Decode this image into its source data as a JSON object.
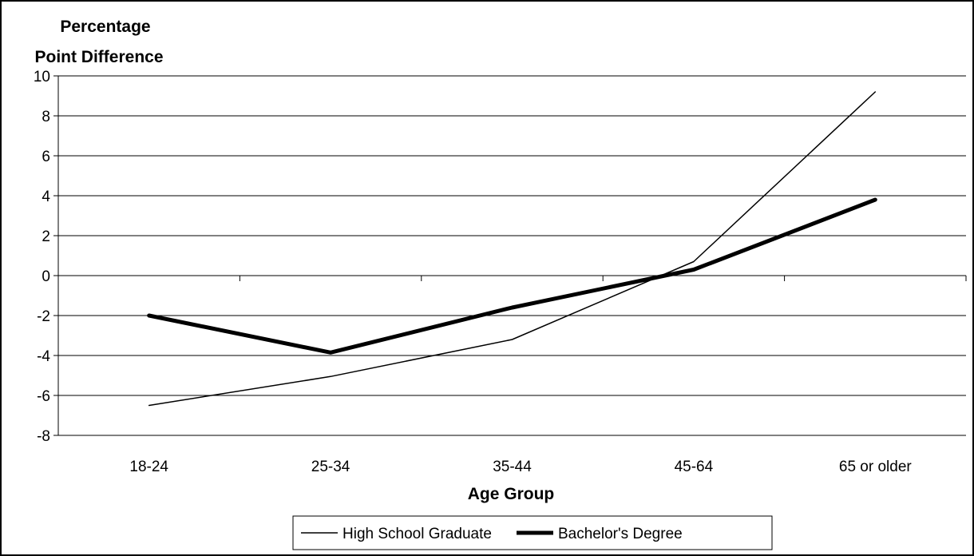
{
  "chart_data": {
    "type": "line",
    "categories": [
      "18-24",
      "25-34",
      "35-44",
      "45-64",
      "65 or older"
    ],
    "series": [
      {
        "name": "High School Graduate",
        "values": [
          -6.5,
          -5.05,
          -3.2,
          0.7,
          9.2
        ],
        "color": "#000000",
        "style": "thin"
      },
      {
        "name": "Bachelor's Degree",
        "values": [
          -2.0,
          -3.85,
          -1.6,
          0.3,
          3.8
        ],
        "color": "#000000",
        "style": "thick"
      }
    ],
    "ylabel_lines": [
      "Percentage",
      "Point Difference"
    ],
    "xlabel": "Age Group",
    "ylim": [
      -8,
      10
    ],
    "yticks": [
      "10",
      "8",
      "6",
      "4",
      "2",
      "0",
      "-2",
      "-4",
      "-6",
      "-8"
    ],
    "ytick_values": [
      10,
      8,
      6,
      4,
      2,
      0,
      -2,
      -4,
      -6,
      -8
    ],
    "grid": true,
    "legend_position": "bottom"
  }
}
